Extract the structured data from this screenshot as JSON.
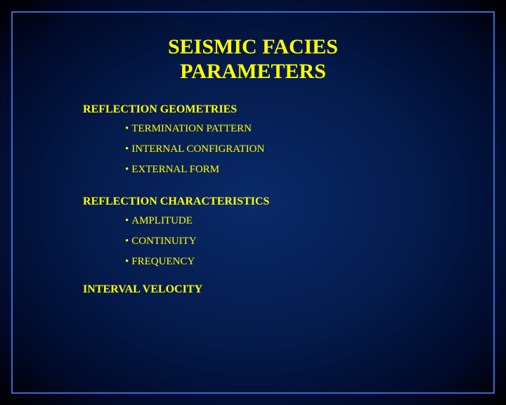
{
  "slide": {
    "background_gradient": {
      "center_color": "#0a2a6a",
      "mid_color": "#041a4a",
      "outer_color": "#000a2a",
      "edge_color": "#000000"
    },
    "border_color": "#3a6ad0",
    "text_color": "#ffff00",
    "font_family": "Times New Roman",
    "title_line1": "SEISMIC FACIES",
    "title_line2": "PARAMETERS",
    "title_fontsize": 30,
    "heading_fontsize": 16,
    "bullet_fontsize": 15,
    "sections": [
      {
        "heading": "REFLECTION GEOMETRIES",
        "items": [
          "TERMINATION PATTERN",
          "INTERNAL CONFIGRATION",
          "EXTERNAL FORM"
        ]
      },
      {
        "heading": "REFLECTION CHARACTERISTICS",
        "items": [
          "AMPLITUDE",
          "CONTINUITY",
          "FREQUENCY"
        ]
      },
      {
        "heading": "INTERVAL VELOCITY",
        "items": []
      }
    ]
  }
}
